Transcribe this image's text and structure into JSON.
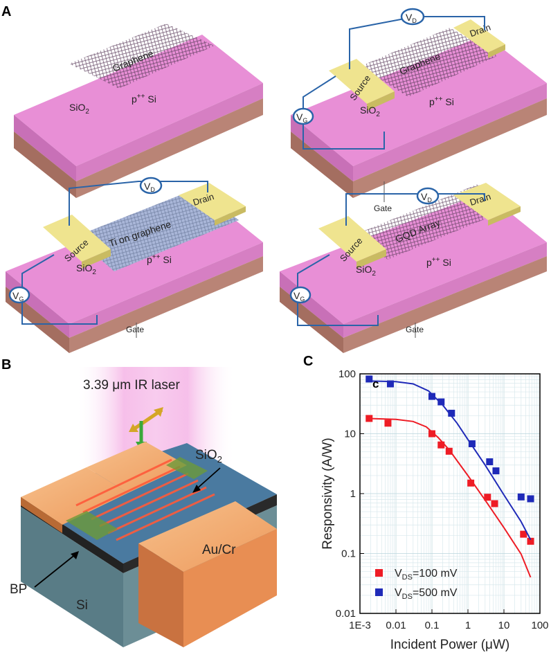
{
  "panels": {
    "a_letter": "A",
    "b_letter": "B",
    "c_letter": "C"
  },
  "device1": {
    "channel": "Graphene",
    "oxide": "SiO",
    "oxide_sub": "2",
    "substrate": "p",
    "substrate_sup": "++",
    "substrate_tail": " Si"
  },
  "device2": {
    "channel": "Graphene",
    "source": "Source",
    "drain": "Drain",
    "vd": "V",
    "vd_sub": "D",
    "vg": "V",
    "vg_sub": "G",
    "oxide": "SiO",
    "oxide_sub": "2",
    "substrate": "p",
    "substrate_sup": "++",
    "substrate_tail": " Si",
    "gate": "Gate"
  },
  "device3": {
    "channel": "Ti on graphene",
    "source": "Source",
    "drain": "Drain",
    "vd": "V",
    "vd_sub": "D",
    "vg": "V",
    "vg_sub": "G",
    "oxide": "SiO",
    "oxide_sub": "2",
    "substrate": "p",
    "substrate_sup": "++",
    "substrate_tail": " Si",
    "gate": "Gate"
  },
  "device4": {
    "channel": "GQD Array",
    "source": "Source",
    "drain": "Drain",
    "vd": "V",
    "vd_sub": "D",
    "vg": "V",
    "vg_sub": "G",
    "oxide": "SiO",
    "oxide_sub": "2",
    "substrate": "p",
    "substrate_sup": "++",
    "substrate_tail": " Si",
    "gate": "Gate"
  },
  "panel_b": {
    "laser": "3.39 μm IR laser",
    "oxide": "SiO",
    "oxide_sub": "2",
    "contact": "Au/Cr",
    "bp": "BP",
    "si": "Si"
  },
  "colors": {
    "pink_top": "#e88fd6",
    "pink_side": "#c36fb2",
    "si_side": "#b98476",
    "gold": "#efe48f",
    "blue_line": "#2a64a8",
    "red_series": "#ee1c25",
    "blue_series": "#1f2ab8"
  },
  "chart_data": {
    "type": "scatter",
    "inset_label": "c",
    "xlabel": "Incident Power (μW)",
    "ylabel": "Responsivity (A/W)",
    "xscale": "log",
    "yscale": "log",
    "xlim": [
      0.001,
      100
    ],
    "ylim": [
      0.01,
      100
    ],
    "xticks": [
      "1E-3",
      "0.01",
      "0.1",
      "1",
      "10",
      "100"
    ],
    "yticks": [
      "0.01",
      "0.1",
      "1",
      "10",
      "100"
    ],
    "grid": true,
    "legend_position": "bottom-left",
    "series": [
      {
        "name_main": "V",
        "name_sub": "DS",
        "name_tail": "=100 mV",
        "color": "#ee1c25",
        "points": [
          [
            0.0018,
            18
          ],
          [
            0.006,
            15
          ],
          [
            0.1,
            10
          ],
          [
            0.18,
            6.5
          ],
          [
            0.3,
            5.1
          ],
          [
            1.2,
            1.5
          ],
          [
            3.5,
            0.87
          ],
          [
            5.5,
            0.68
          ],
          [
            35,
            0.21
          ],
          [
            55,
            0.16
          ]
        ],
        "fit": [
          [
            0.0015,
            18
          ],
          [
            0.01,
            17.4
          ],
          [
            0.03,
            16
          ],
          [
            0.07,
            13
          ],
          [
            0.15,
            8.6
          ],
          [
            0.3,
            5.4
          ],
          [
            1,
            2.0
          ],
          [
            3,
            0.78
          ],
          [
            10,
            0.27
          ],
          [
            30,
            0.098
          ],
          [
            55,
            0.04
          ]
        ]
      },
      {
        "name_main": "V",
        "name_sub": "DS",
        "name_tail": "=500 mV",
        "color": "#1f2ab8",
        "points": [
          [
            0.0018,
            82
          ],
          [
            0.007,
            68
          ],
          [
            0.1,
            42
          ],
          [
            0.18,
            34
          ],
          [
            0.35,
            22
          ],
          [
            1.3,
            6.8
          ],
          [
            4,
            3.4
          ],
          [
            6,
            2.4
          ],
          [
            30,
            0.88
          ],
          [
            55,
            0.82
          ]
        ],
        "fit": [
          [
            0.0015,
            76
          ],
          [
            0.01,
            74
          ],
          [
            0.03,
            68
          ],
          [
            0.08,
            52
          ],
          [
            0.2,
            30
          ],
          [
            0.5,
            15
          ],
          [
            1,
            8
          ],
          [
            3,
            3.0
          ],
          [
            10,
            0.95
          ],
          [
            30,
            0.34
          ],
          [
            55,
            0.17
          ]
        ]
      }
    ]
  }
}
